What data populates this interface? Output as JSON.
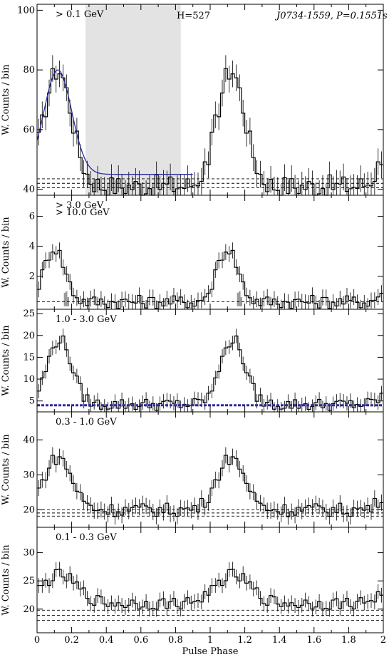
{
  "figure": {
    "x_axis_label": "Pulse Phase",
    "x_range": [
      0,
      2
    ],
    "x_ticks": [
      "0",
      "0.2",
      "0.4",
      "0.6",
      "0.8",
      "1",
      "1.2",
      "1.4",
      "1.6",
      "1.8",
      "2"
    ]
  },
  "colors": {
    "fit": "#2a2a9c",
    "shade": "#e3e3e3",
    "secondary_text": "#888888",
    "title_blue": "#1d1dbf"
  },
  "chart_data": [
    {
      "type": "line",
      "style": "histogram",
      "panel": "> 0.1 GeV",
      "label": "> 0.1 GeV",
      "annotation": "H=527",
      "source_title": "J0734-1559, P=0.1551s",
      "ylabel": "W. Counts / bin",
      "ylim": [
        38,
        102
      ],
      "yticks": [
        40,
        60,
        80,
        100
      ],
      "shaded_phase_range": [
        0.28,
        0.83
      ],
      "background_levels": [
        40.5,
        42.0,
        43.5
      ],
      "fit_curve": true,
      "bins": 100,
      "profile": {
        "base": 41,
        "peak1": {
          "center": 0.12,
          "height": 39,
          "width": 0.08
        },
        "peak2": {
          "center": 0.12,
          "height": 0,
          "width": 0.05
        }
      },
      "grid": false,
      "legend": "none"
    },
    {
      "type": "line",
      "style": "histogram",
      "panel": "> 3.0 GeV",
      "label": "> 3.0 GeV",
      "label2": "> 10.0 GeV",
      "ylabel": "W. Counts / bin",
      "ylim": [
        -0.2,
        7.4
      ],
      "yticks": [
        2,
        4,
        6
      ],
      "background_levels": [
        0.3
      ],
      "bins": 100,
      "profile": {
        "base": 0.3,
        "peak1": {
          "center": 0.1,
          "height": 3.6,
          "width": 0.06
        },
        "peak2": {
          "center": 0.1,
          "height": 0,
          "width": 0.05
        }
      },
      "high_energy_bars_x": [
        0.16,
        0.17,
        0.18,
        1.16,
        1.17,
        1.18
      ],
      "high_energy_bars_y": [
        0.9,
        1.0,
        0.6,
        0.9,
        1.0,
        0.6
      ],
      "grid": false,
      "legend": "none"
    },
    {
      "type": "line",
      "style": "histogram",
      "panel": "1.0 - 3.0 GeV",
      "label": "1.0 - 3.0 GeV",
      "ylabel": "W. Counts / bin",
      "ylim": [
        2.5,
        26
      ],
      "yticks": [
        5,
        10,
        15,
        20,
        25
      ],
      "background_levels": [
        4.0
      ],
      "background_thick": true,
      "bins": 100,
      "profile": {
        "base": 4.2,
        "peak1": {
          "center": 0.13,
          "height": 15,
          "width": 0.07
        },
        "peak2": {
          "center": 0.13,
          "height": 0,
          "width": 0.05
        }
      },
      "grid": false,
      "legend": "none"
    },
    {
      "type": "line",
      "style": "histogram",
      "panel": "0.3 - 1.0 GeV",
      "label": "0.3 - 1.0 GeV",
      "ylabel": "W. Counts / bin",
      "ylim": [
        15,
        48
      ],
      "yticks": [
        20,
        30,
        40
      ],
      "background_levels": [
        18.2,
        19.1,
        20.0
      ],
      "bins": 100,
      "profile": {
        "base": 20,
        "peak1": {
          "center": 0.12,
          "height": 15,
          "width": 0.08
        },
        "peak2": {
          "center": 0.12,
          "height": 0,
          "width": 0.05
        }
      },
      "grid": false,
      "legend": "none"
    },
    {
      "type": "line",
      "style": "histogram",
      "panel": "0.1 - 0.3 GeV",
      "label": "0.1 - 0.3 GeV",
      "ylabel": "W. Counts / bin",
      "ylim": [
        15.8,
        34.5
      ],
      "yticks": [
        20,
        25,
        30
      ],
      "background_levels": [
        18.0,
        18.9,
        19.8
      ],
      "bins": 100,
      "profile": {
        "base": 21,
        "peak1": {
          "center": 0.13,
          "height": 5,
          "width": 0.1
        },
        "peak2": {
          "center": 0.13,
          "height": 0,
          "width": 0.05
        }
      },
      "grid": false,
      "legend": "none"
    }
  ]
}
